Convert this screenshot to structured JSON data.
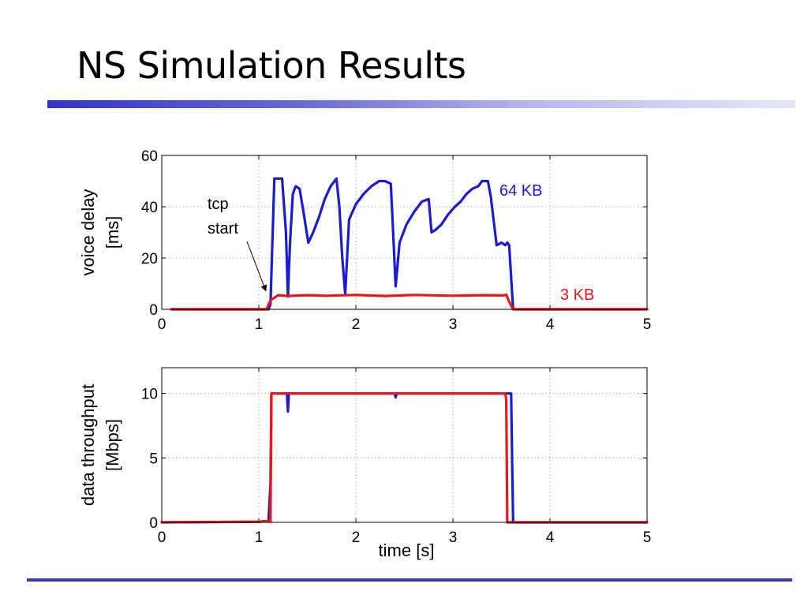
{
  "slide": {
    "title": "NS Simulation Results"
  },
  "colors": {
    "series_64kb": "#1c1ccf",
    "series_3kb": "#e81818",
    "title_rule": "#3333cc",
    "bottom_rule": "#3a3ab8"
  },
  "chart_data": [
    {
      "type": "line",
      "title": "",
      "xlabel": "",
      "ylabel": "voice delay\n[ms]",
      "xlim": [
        0,
        5
      ],
      "ylim": [
        0,
        60
      ],
      "xticks": [
        0,
        1,
        2,
        3,
        4,
        5
      ],
      "yticks": [
        0,
        20,
        40,
        60
      ],
      "grid": true,
      "annotations": [
        {
          "text": "tcp\nstart",
          "points_to": [
            1.08,
            6
          ]
        }
      ],
      "series": [
        {
          "name": "64 KB",
          "color": "#1c1ccf",
          "x": [
            0.1,
            1.1,
            1.12,
            1.16,
            1.18,
            1.24,
            1.28,
            1.3,
            1.32,
            1.35,
            1.38,
            1.42,
            1.46,
            1.51,
            1.56,
            1.62,
            1.68,
            1.74,
            1.8,
            1.83,
            1.86,
            1.89,
            1.93,
            2.0,
            2.08,
            2.16,
            2.24,
            2.3,
            2.36,
            2.39,
            2.41,
            2.45,
            2.52,
            2.6,
            2.68,
            2.75,
            2.78,
            2.82,
            2.88,
            2.95,
            3.02,
            3.08,
            3.14,
            3.2,
            3.26,
            3.3,
            3.36,
            3.39,
            3.45,
            3.5,
            3.54,
            3.56,
            3.58,
            3.62,
            4.0,
            5.0
          ],
          "y": [
            0,
            0,
            2,
            51,
            51,
            51,
            30,
            5,
            25,
            45,
            48,
            47,
            38,
            26,
            30,
            36,
            43,
            48,
            51,
            40,
            20,
            6,
            35,
            41,
            45,
            48,
            50,
            50,
            49,
            25,
            9,
            26,
            33,
            38,
            42,
            43,
            30,
            31,
            33,
            37,
            40,
            42,
            45,
            47,
            48,
            50,
            50,
            44,
            25,
            26,
            25,
            26,
            25,
            0,
            0,
            0
          ]
        },
        {
          "name": "3 KB",
          "color": "#e81818",
          "x": [
            0.1,
            1.08,
            1.12,
            1.2,
            1.3,
            1.5,
            1.7,
            2.0,
            2.3,
            2.6,
            3.0,
            3.3,
            3.52,
            3.55,
            3.58,
            3.62,
            4.0,
            5.0
          ],
          "y": [
            0,
            0,
            3.5,
            5.5,
            5.2,
            5.5,
            5.3,
            5.6,
            5.2,
            5.6,
            5.3,
            5.5,
            5.4,
            5.7,
            3,
            0,
            0,
            0
          ]
        }
      ]
    },
    {
      "type": "line",
      "title": "",
      "xlabel": "time [s]",
      "ylabel": "data throughput\n[Mbps]",
      "xlim": [
        0,
        5
      ],
      "ylim": [
        0,
        12
      ],
      "xticks": [
        0,
        1,
        2,
        3,
        4,
        5
      ],
      "yticks": [
        0,
        5,
        10
      ],
      "grid": true,
      "series": [
        {
          "name": "64 KB",
          "color": "#1c1ccf",
          "x": [
            0,
            1.0,
            1.1,
            1.12,
            1.13,
            1.25,
            1.29,
            1.3,
            1.31,
            1.4,
            2.0,
            2.4,
            2.41,
            2.42,
            3.0,
            3.58,
            3.6,
            3.61,
            3.62,
            3.63,
            4.0,
            5.0
          ],
          "y": [
            0,
            0.05,
            0.1,
            3,
            10,
            10,
            10,
            8.6,
            10,
            10,
            10,
            10,
            9.7,
            10,
            10,
            10,
            10,
            5,
            0,
            0,
            0,
            0
          ]
        },
        {
          "name": "3 KB",
          "color": "#e81818",
          "x": [
            0,
            1.0,
            1.1,
            1.12,
            1.13,
            2.0,
            3.0,
            3.54,
            3.55,
            3.56,
            4.0,
            5.0
          ],
          "y": [
            0,
            0.05,
            0.1,
            0.1,
            10,
            10,
            10,
            10,
            9.5,
            0,
            0,
            0
          ]
        }
      ]
    }
  ]
}
